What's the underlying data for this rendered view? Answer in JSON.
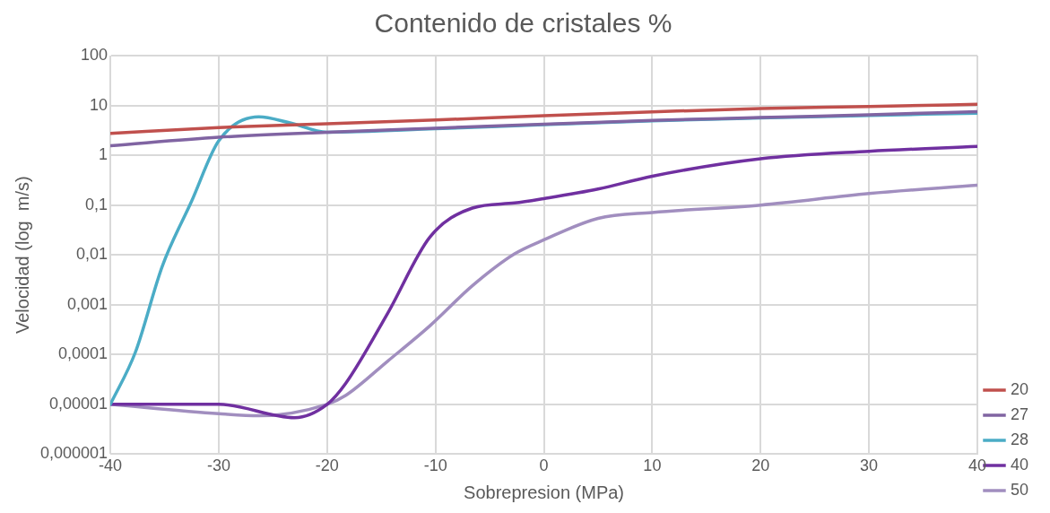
{
  "chart_data": {
    "type": "line",
    "title": "Contenido de cristales %",
    "xlabel": "Sobrepresion (MPa)",
    "ylabel": "Velocidad (log  m/s)",
    "log": "y",
    "grid": true,
    "legend": "right",
    "marker": "none",
    "line_style": "solid",
    "xlim": [
      -40,
      40
    ],
    "xticks": [
      -40,
      -30,
      -20,
      -10,
      0,
      10,
      20,
      30,
      40
    ],
    "ylim": [
      1e-06,
      100
    ],
    "yticks": [
      {
        "value": 1e-06,
        "label": "0,000001"
      },
      {
        "value": 1e-05,
        "label": "0,00001"
      },
      {
        "value": 0.0001,
        "label": "0,0001"
      },
      {
        "value": 0.001,
        "label": "0,001"
      },
      {
        "value": 0.01,
        "label": "0,01"
      },
      {
        "value": 0.1,
        "label": "0,1"
      },
      1,
      10,
      100
    ],
    "series": [
      {
        "name": "20",
        "color": "#c0504d",
        "x": [
          -40,
          -30,
          -20,
          -10,
          0,
          10,
          20,
          30,
          40
        ],
        "values": [
          2.75,
          3.6,
          4.3,
          5.1,
          6.2,
          7.4,
          8.7,
          9.5,
          10.5
        ]
      },
      {
        "name": "27",
        "color": "#8064a2",
        "x": [
          -40,
          -30,
          -20,
          -10,
          0,
          10,
          20,
          30,
          40
        ],
        "values": [
          1.55,
          2.3,
          2.9,
          3.5,
          4.2,
          5.0,
          5.7,
          6.5,
          7.5
        ]
      },
      {
        "name": "28",
        "color": "#4bacc6",
        "x": [
          -40,
          -37.7,
          -35.2,
          -32.5,
          -30,
          -26.3,
          -23.5,
          -20,
          -10,
          0,
          10,
          20,
          30,
          40
        ],
        "values": [
          1e-05,
          0.00011,
          0.006,
          0.12,
          1.95,
          5.9,
          4.5,
          2.9,
          3.4,
          4.1,
          4.9,
          5.6,
          6.3,
          7.0
        ]
      },
      {
        "name": "40",
        "color": "#7030a0",
        "x": [
          -40,
          -30,
          -23,
          -20,
          -18.3,
          -14.4,
          -10.5,
          -6.6,
          -2.7,
          0,
          5,
          10,
          20,
          30,
          40
        ],
        "values": [
          1e-05,
          1e-05,
          5.4e-06,
          1e-05,
          2.6e-05,
          0.00068,
          0.023,
          0.087,
          0.11,
          0.135,
          0.21,
          0.38,
          0.85,
          1.2,
          1.5
        ]
      },
      {
        "name": "50",
        "color": "#a18ebf",
        "x": [
          -40,
          -30,
          -26.3,
          -20,
          -18.3,
          -14.4,
          -10.5,
          -6.6,
          -2.7,
          0,
          5,
          10,
          20,
          30,
          40
        ],
        "values": [
          1e-05,
          6.5e-06,
          5.9e-06,
          1e-05,
          1.5e-05,
          7.4e-05,
          0.00038,
          0.0024,
          0.0105,
          0.02,
          0.054,
          0.071,
          0.1,
          0.17,
          0.25
        ]
      }
    ]
  }
}
